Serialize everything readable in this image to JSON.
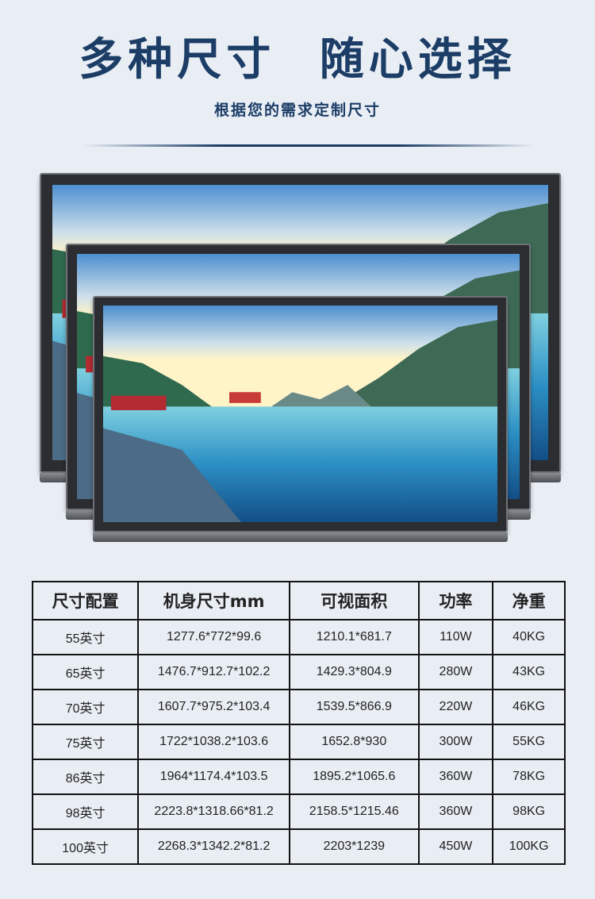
{
  "header": {
    "title": "多种尺寸  随心选择",
    "subtitle": "根据您的需求定制尺寸"
  },
  "table": {
    "columns": [
      "尺寸配置",
      "机身尺寸mm",
      "可视面积",
      "功率",
      "净重"
    ],
    "rows": [
      [
        "55英寸",
        "1277.6*772*99.6",
        "1210.1*681.7",
        "110W",
        "40KG"
      ],
      [
        "65英寸",
        "1476.7*912.7*102.2",
        "1429.3*804.9",
        "280W",
        "43KG"
      ],
      [
        "70英寸",
        "1607.7*975.2*103.4",
        "1539.5*866.9",
        "220W",
        "46KG"
      ],
      [
        "75英寸",
        "1722*1038.2*103.6",
        "1652.8*930",
        "300W",
        "55KG"
      ],
      [
        "86英寸",
        "1964*1174.4*103.5",
        "1895.2*1065.6",
        "360W",
        "78KG"
      ],
      [
        "98英寸",
        "2223.8*1318.66*81.2",
        "2158.5*1215.46",
        "360W",
        "98KG"
      ],
      [
        "100英寸",
        "2268.3*1342.2*81.2",
        "2203*1239",
        "450W",
        "100KG"
      ]
    ]
  }
}
